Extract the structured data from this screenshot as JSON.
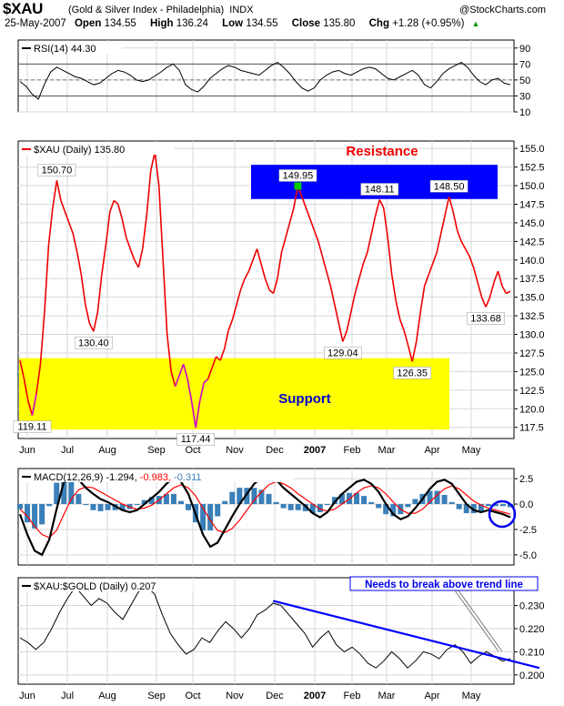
{
  "header": {
    "symbol": "$XAU",
    "name": "(Gold & Silver Index - Philadelphia)",
    "exchange": "INDX",
    "watermark": "@StockCharts.com",
    "date": "25-May-2007",
    "open_label": "Open",
    "open": "134.55",
    "high_label": "High",
    "high": "136.24",
    "low_label": "Low",
    "low": "134.55",
    "close_label": "Close",
    "close": "135.80",
    "chg_label": "Chg",
    "chg": "+1.28 (+0.95%)",
    "chg_arrow": "▲"
  },
  "colors": {
    "price": "#ee0000",
    "price_alt": "#cc00cc",
    "support": "#ffff00",
    "resistance": "#0000ff",
    "macd": "#000000",
    "signal": "#ff0000",
    "histogram": "#3a7fb8",
    "trendline": "#0000ff",
    "grid": "#d7d7d7"
  },
  "chart_data": [
    {
      "type": "line",
      "panel": "rsi",
      "legend": "RSI(14)",
      "value": "44.30",
      "ylim": [
        10,
        100
      ],
      "yticks": [
        "90",
        "70",
        "50",
        "30",
        "10"
      ],
      "reference_lines": [
        70,
        30
      ],
      "midline": 50,
      "series": [
        {
          "values": [
            48,
            42,
            32,
            26,
            45,
            60,
            66,
            62,
            58,
            54,
            52,
            48,
            44,
            46,
            52,
            58,
            62,
            60,
            56,
            50,
            48,
            50,
            55,
            60,
            66,
            70,
            62,
            44,
            38,
            35,
            42,
            52,
            58,
            64,
            68,
            66,
            62,
            60,
            58,
            56,
            62,
            68,
            72,
            66,
            58,
            48,
            40,
            36,
            40,
            50,
            56,
            60,
            62,
            58,
            56,
            60,
            64,
            66,
            64,
            58,
            52,
            50,
            54,
            58,
            62,
            56,
            44,
            40,
            48,
            58,
            64,
            68,
            72,
            66,
            56,
            48,
            44,
            50,
            52,
            46,
            44
          ]
        }
      ]
    },
    {
      "type": "line",
      "panel": "price",
      "legend": "$XAU (Daily)",
      "value": "135.80",
      "ylim": [
        116,
        156
      ],
      "yticks": [
        "155.0",
        "152.5",
        "150.0",
        "147.5",
        "145.0",
        "142.5",
        "140.0",
        "137.5",
        "135.0",
        "132.5",
        "130.0",
        "127.5",
        "125.0",
        "122.5",
        "120.0",
        "117.5"
      ],
      "x_labels": [
        "Jun",
        "Jul",
        "Aug",
        "Sep",
        "Oct",
        "Nov",
        "Dec",
        "2007",
        "Feb",
        "Mar",
        "Apr",
        "May"
      ],
      "series": [
        {
          "name": "$XAU",
          "values": [
            126.5,
            124.0,
            121.0,
            119.11,
            122.0,
            126.0,
            133.0,
            142.0,
            147.0,
            150.7,
            148.0,
            146.5,
            145.0,
            143.5,
            141.0,
            138.0,
            134.0,
            131.5,
            130.4,
            133.0,
            138.0,
            142.0,
            146.5,
            148.0,
            147.5,
            145.5,
            143.0,
            141.5,
            140.0,
            139.0,
            141.5,
            146.0,
            152.0,
            154.5,
            150.0,
            140.0,
            130.0,
            125.0,
            123.0,
            124.5,
            126.0,
            124.0,
            121.0,
            117.44,
            121.0,
            123.5,
            124.0,
            125.5,
            127.0,
            126.5,
            128.0,
            130.5,
            132.0,
            134.0,
            136.0,
            137.5,
            138.5,
            140.0,
            141.5,
            139.5,
            137.5,
            136.0,
            135.5,
            137.5,
            141.0,
            143.0,
            145.0,
            147.0,
            149.95,
            148.5,
            147.0,
            145.5,
            144.0,
            142.5,
            140.5,
            138.5,
            136.5,
            134.0,
            131.5,
            129.04,
            130.5,
            133.0,
            135.5,
            137.5,
            139.5,
            141.0,
            143.5,
            146.0,
            148.11,
            147.0,
            143.0,
            138.0,
            134.5,
            132.0,
            130.5,
            128.5,
            126.35,
            129.0,
            133.0,
            136.5,
            138.0,
            139.5,
            141.0,
            143.5,
            146.0,
            148.5,
            146.5,
            144.0,
            142.5,
            141.5,
            140.5,
            139.0,
            137.0,
            135.0,
            133.68,
            135.0,
            137.0,
            138.5,
            136.5,
            135.5,
            135.8
          ]
        }
      ],
      "annotations": [
        {
          "text": "150.70",
          "series_index": 9
        },
        {
          "text": "130.40",
          "series_index": 18
        },
        {
          "text": "119.11",
          "series_index": 3
        },
        {
          "text": "117.44",
          "series_index": 43
        },
        {
          "text": "149.95",
          "series_index": 68
        },
        {
          "text": "129.04",
          "series_index": 79
        },
        {
          "text": "148.11",
          "series_index": 88
        },
        {
          "text": "126.35",
          "series_index": 96
        },
        {
          "text": "148.50",
          "series_index": 105
        },
        {
          "text": "133.68",
          "series_index": 114
        }
      ],
      "zones": {
        "resistance": {
          "label": "Resistance",
          "y_range": [
            148.2,
            152.8
          ]
        },
        "support": {
          "label": "Support",
          "y_range": [
            117.2,
            126.8
          ]
        }
      }
    },
    {
      "type": "line",
      "panel": "macd",
      "legend": "MACD(12,26,9)",
      "values_text": [
        "-1.294",
        "-0.983",
        "-0.311"
      ],
      "ylim": [
        -6,
        3.5
      ],
      "yticks": [
        "2.5",
        "0.0",
        "-2.5",
        "-5.0"
      ],
      "series": [
        {
          "name": "MACD",
          "values": [
            -1.0,
            -3.0,
            -4.6,
            -5.0,
            -3.5,
            -0.5,
            2.2,
            2.9,
            2.4,
            1.6,
            1.0,
            0.5,
            0.2,
            -0.2,
            -0.6,
            -0.8,
            -0.6,
            0.0,
            0.6,
            1.2,
            2.0,
            2.6,
            2.2,
            1.0,
            -1.0,
            -3.0,
            -4.2,
            -3.8,
            -2.5,
            -1.2,
            0.0,
            1.0,
            2.0,
            2.6,
            2.9,
            2.4,
            1.6,
            1.0,
            0.4,
            -0.2,
            -0.9,
            -1.3,
            -0.8,
            0.2,
            1.0,
            1.6,
            2.2,
            2.4,
            2.0,
            1.2,
            0.0,
            -1.0,
            -1.5,
            -1.2,
            -0.4,
            0.5,
            1.5,
            2.2,
            2.4,
            2.0,
            1.0,
            0.0,
            -0.6,
            -0.8,
            -0.6,
            -0.8,
            -1.0,
            -1.294
          ]
        },
        {
          "name": "Signal",
          "values": [
            -0.5,
            -1.2,
            -2.2,
            -3.0,
            -3.3,
            -2.6,
            -1.0,
            0.5,
            1.4,
            1.7,
            1.6,
            1.2,
            0.8,
            0.4,
            0.0,
            -0.3,
            -0.5,
            -0.4,
            -0.1,
            0.4,
            1.0,
            1.6,
            1.9,
            1.6,
            0.8,
            -0.4,
            -1.6,
            -2.6,
            -2.8,
            -2.4,
            -1.6,
            -0.6,
            0.4,
            1.2,
            1.9,
            2.2,
            2.0,
            1.6,
            1.0,
            0.5,
            0.0,
            -0.5,
            -0.7,
            -0.5,
            0.0,
            0.5,
            1.1,
            1.6,
            1.8,
            1.6,
            1.0,
            0.2,
            -0.5,
            -0.9,
            -0.9,
            -0.5,
            0.2,
            0.9,
            1.5,
            1.8,
            1.5,
            0.9,
            0.3,
            -0.1,
            -0.4,
            -0.6,
            -0.8,
            -0.983
          ]
        }
      ],
      "histogram": [
        -0.5,
        -1.8,
        -2.4,
        -2.0,
        -0.2,
        2.1,
        3.2,
        2.4,
        1.0,
        -0.1,
        -0.6,
        -0.7,
        -0.6,
        -0.6,
        -0.6,
        -0.5,
        -0.1,
        0.4,
        0.7,
        0.8,
        1.0,
        1.0,
        0.3,
        -0.6,
        -1.8,
        -2.6,
        -2.6,
        -1.2,
        0.3,
        1.2,
        1.6,
        1.6,
        1.6,
        1.4,
        1.0,
        0.2,
        -0.4,
        -0.6,
        -0.6,
        -0.7,
        -0.9,
        -0.8,
        -0.1,
        0.7,
        1.0,
        1.1,
        1.1,
        0.8,
        0.2,
        -0.4,
        -1.0,
        -1.2,
        -1.0,
        -0.3,
        0.5,
        1.0,
        1.3,
        1.3,
        0.9,
        0.2,
        -0.5,
        -0.9,
        -0.9,
        -0.7,
        -0.2,
        -0.2,
        -0.2,
        -0.311
      ]
    },
    {
      "type": "line",
      "panel": "ratio",
      "legend": "$XAU:$GOLD (Daily)",
      "value": "0.207",
      "ylim": [
        0.196,
        0.242
      ],
      "yticks": [
        "0.230",
        "0.220",
        "0.210",
        "0.200"
      ],
      "x_labels": [
        "Jun",
        "Jul",
        "Aug",
        "Sep",
        "Oct",
        "Nov",
        "Dec",
        "2007",
        "Feb",
        "Mar",
        "Apr",
        "May"
      ],
      "series": [
        {
          "name": "$XAU:$GOLD",
          "values": [
            0.216,
            0.214,
            0.211,
            0.214,
            0.22,
            0.227,
            0.233,
            0.238,
            0.234,
            0.23,
            0.233,
            0.231,
            0.227,
            0.224,
            0.23,
            0.236,
            0.238,
            0.235,
            0.226,
            0.218,
            0.213,
            0.209,
            0.211,
            0.216,
            0.214,
            0.219,
            0.223,
            0.22,
            0.216,
            0.22,
            0.226,
            0.228,
            0.231,
            0.23,
            0.226,
            0.222,
            0.218,
            0.212,
            0.216,
            0.219,
            0.213,
            0.21,
            0.212,
            0.209,
            0.205,
            0.203,
            0.206,
            0.21,
            0.207,
            0.203,
            0.206,
            0.21,
            0.209,
            0.207,
            0.211,
            0.213,
            0.21,
            0.205,
            0.208,
            0.21,
            0.208,
            0.206,
            0.207
          ]
        }
      ],
      "trendline": {
        "label": "Needs to break above trend line",
        "from_index": 32,
        "from_value": 0.232,
        "to_value": 0.203
      }
    }
  ]
}
